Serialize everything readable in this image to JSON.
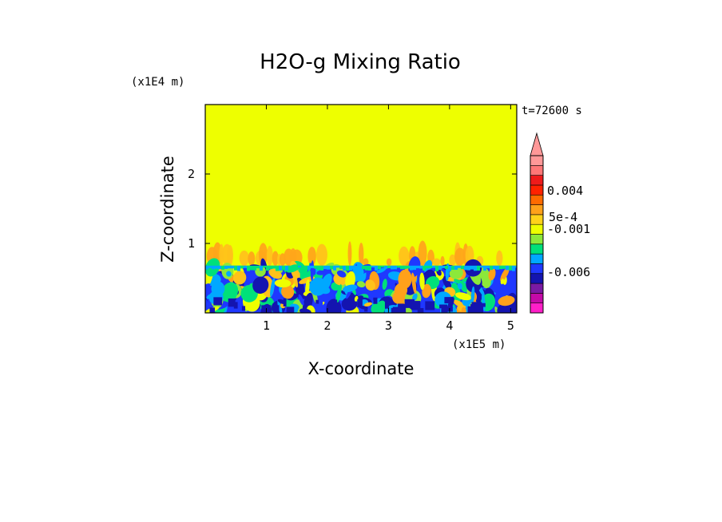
{
  "chart_data": {
    "type": "heatmap",
    "title": "H2O-g Mixing Ratio",
    "xlabel": "X-coordinate",
    "ylabel": "Z-coordinate",
    "x_scale_label": "(x1E5 m)",
    "y_scale_label": "(x1E4 m)",
    "time_label": "t=72600 s",
    "xlim": [
      0,
      5.1
    ],
    "ylim": [
      0,
      3
    ],
    "x_ticks": [
      1,
      2,
      3,
      4,
      5
    ],
    "y_ticks": [
      1,
      2
    ],
    "x_tick_labels": [
      "1",
      "2",
      "3",
      "4",
      "5"
    ],
    "y_tick_labels": [
      "1",
      "2"
    ],
    "background_value_color": "#eeff00",
    "turbulent_layer_top": 0.68,
    "warm_plume_top": 1.03,
    "colorbar": {
      "colors": [
        "#ff1fc8",
        "#c40aa8",
        "#7a1aa4",
        "#1414b0",
        "#1f38ff",
        "#00a8ff",
        "#00e07a",
        "#8ce83a",
        "#eeff00",
        "#ffd21a",
        "#ffa11a",
        "#ff6a00",
        "#ff2200",
        "#ee1b1b",
        "#ff7777",
        "#ff9898"
      ],
      "labels": [
        {
          "text": "0.004",
          "level": 0.004
        },
        {
          "text": "5e-4",
          "level": 0.0005
        },
        {
          "text": "-0.001",
          "level": -0.001
        },
        {
          "text": "-0.006",
          "level": -0.006
        }
      ],
      "extend_max": true
    }
  }
}
